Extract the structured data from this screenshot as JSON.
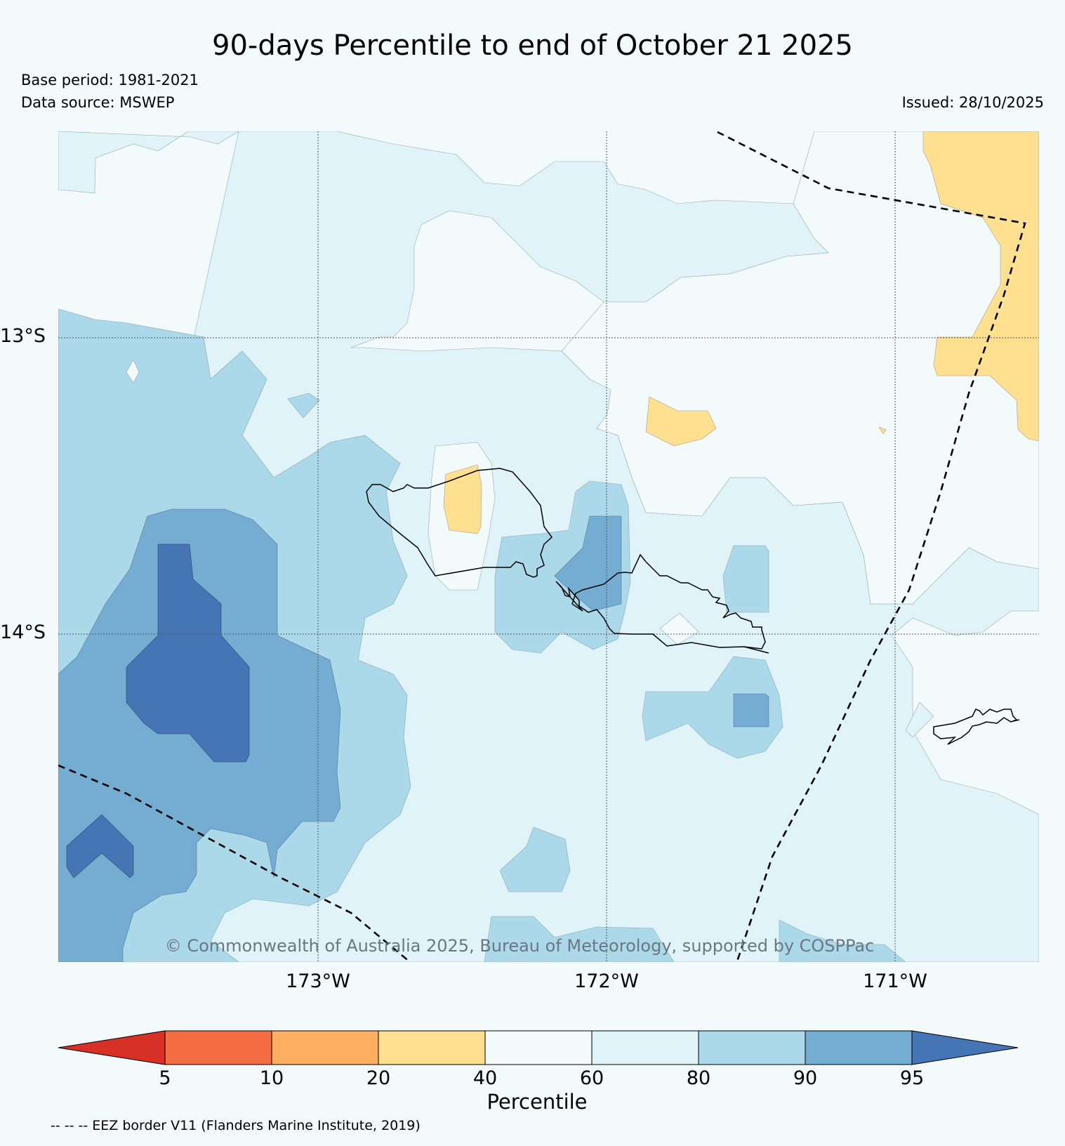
{
  "header": {
    "title": "90-days Percentile to end of October 21 2025",
    "base_period": "Base period: 1981-2021",
    "data_source": "Data source: MSWEP",
    "issued": "Issued: 28/10/2025"
  },
  "map": {
    "lat_labels": [
      "13°S",
      "14°S"
    ],
    "lon_labels": [
      "173°W",
      "172°W",
      "171°W"
    ],
    "copyright": "© Commonwealth of Australia 2025, Bureau of Meteorology, supported by COSPPac",
    "regions": [
      {
        "name": "samoa-upolu-island",
        "label": ""
      },
      {
        "name": "samoa-tutuila-island",
        "label": ""
      }
    ]
  },
  "colorbar": {
    "label": "Percentile",
    "ticks": [
      "5",
      "10",
      "20",
      "40",
      "60",
      "80",
      "90",
      "95"
    ],
    "colors": [
      "#d73027",
      "#f46d43",
      "#fdae61",
      "#fee090",
      "#f3fafc",
      "#e0f3f8",
      "#abd9e9",
      "#74add1",
      "#4575b4"
    ]
  },
  "footnote": {
    "eez": "-- -- -- EEZ border V11 (Flanders Marine Institute, 2019)"
  }
}
